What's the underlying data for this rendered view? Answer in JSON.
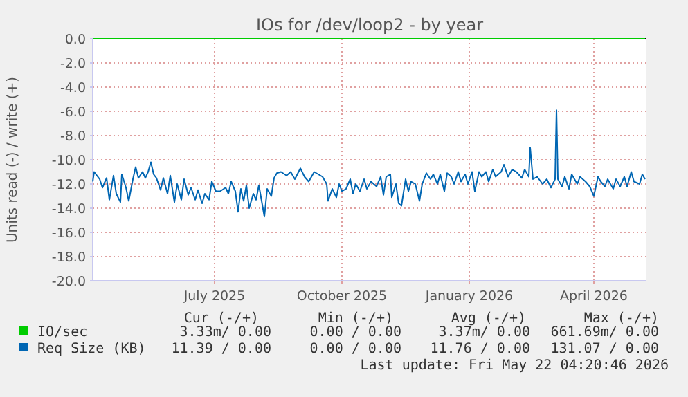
{
  "chart_data": {
    "type": "line",
    "title": "IOs for /dev/loop2 - by year",
    "ylabel": "Units read (-) / write (+)",
    "xlim": [
      "2025-04-04",
      "2026-05-09"
    ],
    "xticks": [
      {
        "value": "2025-07-01",
        "label": "July 2025"
      },
      {
        "value": "2025-10-01",
        "label": "October 2025"
      },
      {
        "value": "2026-01-01",
        "label": "January 2026"
      },
      {
        "value": "2026-04-01",
        "label": "April 2026"
      }
    ],
    "ylim": [
      -20,
      0
    ],
    "yticks": [
      {
        "value": 0,
        "label": "0.0"
      },
      {
        "value": -2,
        "label": "-2.0"
      },
      {
        "value": -4,
        "label": "-4.0"
      },
      {
        "value": -6,
        "label": "-6.0"
      },
      {
        "value": -8,
        "label": "-8.0"
      },
      {
        "value": -10,
        "label": "-10.0"
      },
      {
        "value": -12,
        "label": "-12.0"
      },
      {
        "value": -14,
        "label": "-14.0"
      },
      {
        "value": -16,
        "label": "-16.0"
      },
      {
        "value": -18,
        "label": "-18.0"
      },
      {
        "value": -20,
        "label": "-20.0"
      }
    ],
    "grid": true,
    "legend": "bottom",
    "series": [
      {
        "name": "IO/sec",
        "color": "#00cc00",
        "x": [
          "2025-04-04",
          "2026-05-08"
        ],
        "values": [
          0,
          0
        ]
      },
      {
        "name": "Req Size (KB)",
        "color": "#0066b3",
        "x": [
          "2025-04-04",
          "2025-04-05",
          "2025-04-09",
          "2025-04-11",
          "2025-04-14",
          "2025-04-16",
          "2025-04-19",
          "2025-04-21",
          "2025-04-24",
          "2025-04-25",
          "2025-04-28",
          "2025-04-30",
          "2025-05-03",
          "2025-05-05",
          "2025-05-07",
          "2025-05-10",
          "2025-05-12",
          "2025-05-14",
          "2025-05-16",
          "2025-05-18",
          "2025-05-20",
          "2025-05-23",
          "2025-05-25",
          "2025-05-28",
          "2025-05-30",
          "2025-06-02",
          "2025-06-04",
          "2025-06-07",
          "2025-06-09",
          "2025-06-12",
          "2025-06-14",
          "2025-06-17",
          "2025-06-19",
          "2025-06-22",
          "2025-06-24",
          "2025-06-27",
          "2025-06-29",
          "2025-07-02",
          "2025-07-05",
          "2025-07-09",
          "2025-07-11",
          "2025-07-13",
          "2025-07-16",
          "2025-07-18",
          "2025-07-20",
          "2025-07-22",
          "2025-07-24",
          "2025-07-26",
          "2025-07-29",
          "2025-07-31",
          "2025-08-02",
          "2025-08-04",
          "2025-08-06",
          "2025-08-08",
          "2025-08-11",
          "2025-08-13",
          "2025-08-15",
          "2025-08-18",
          "2025-08-22",
          "2025-08-25",
          "2025-08-28",
          "2025-09-01",
          "2025-09-04",
          "2025-09-07",
          "2025-09-11",
          "2025-09-14",
          "2025-09-17",
          "2025-09-20",
          "2025-09-21",
          "2025-09-24",
          "2025-09-27",
          "2025-09-29",
          "2025-10-01",
          "2025-10-04",
          "2025-10-07",
          "2025-10-09",
          "2025-10-11",
          "2025-10-14",
          "2025-10-17",
          "2025-10-19",
          "2025-10-22",
          "2025-10-26",
          "2025-10-29",
          "2025-10-31",
          "2025-11-02",
          "2025-11-05",
          "2025-11-06",
          "2025-11-09",
          "2025-11-11",
          "2025-11-13",
          "2025-11-16",
          "2025-11-18",
          "2025-11-20",
          "2025-11-23",
          "2025-11-26",
          "2025-11-28",
          "2025-12-01",
          "2025-12-04",
          "2025-12-06",
          "2025-12-09",
          "2025-12-11",
          "2025-12-14",
          "2025-12-16",
          "2025-12-19",
          "2025-12-21",
          "2025-12-24",
          "2025-12-26",
          "2025-12-29",
          "2025-12-31",
          "2026-01-03",
          "2026-01-05",
          "2026-01-08",
          "2026-01-10",
          "2026-01-13",
          "2026-01-15",
          "2026-01-18",
          "2026-01-20",
          "2026-01-24",
          "2026-01-26",
          "2026-01-29",
          "2026-02-01",
          "2026-02-04",
          "2026-02-08",
          "2026-02-10",
          "2026-02-13",
          "2026-02-14",
          "2026-02-16",
          "2026-02-19",
          "2026-02-23",
          "2026-02-26",
          "2026-03-01",
          "2026-03-04",
          "2026-03-05",
          "2026-03-06",
          "2026-03-09",
          "2026-03-11",
          "2026-03-14",
          "2026-03-16",
          "2026-03-20",
          "2026-03-22",
          "2026-03-26",
          "2026-03-29",
          "2026-04-01",
          "2026-04-04",
          "2026-04-06",
          "2026-04-09",
          "2026-04-11",
          "2026-04-15",
          "2026-04-17",
          "2026-04-20",
          "2026-04-23",
          "2026-04-25",
          "2026-04-28",
          "2026-04-30",
          "2026-05-04",
          "2026-05-06",
          "2026-05-08"
        ],
        "values": [
          -11.8,
          -11.0,
          -11.6,
          -12.3,
          -11.5,
          -13.3,
          -11.3,
          -12.8,
          -13.5,
          -11.2,
          -12.3,
          -13.4,
          -11.6,
          -10.6,
          -11.5,
          -11.0,
          -11.5,
          -11.0,
          -10.2,
          -11.2,
          -11.5,
          -12.5,
          -11.5,
          -12.8,
          -11.3,
          -13.5,
          -12.0,
          -13.3,
          -11.6,
          -12.9,
          -12.3,
          -13.3,
          -12.5,
          -13.6,
          -12.8,
          -13.3,
          -11.8,
          -12.6,
          -12.6,
          -12.3,
          -12.8,
          -11.8,
          -12.6,
          -14.3,
          -12.4,
          -13.4,
          -12.1,
          -14.0,
          -12.8,
          -13.3,
          -12.1,
          -13.4,
          -14.7,
          -12.4,
          -13.0,
          -11.5,
          -11.1,
          -11.0,
          -11.3,
          -11.0,
          -11.6,
          -10.7,
          -11.4,
          -11.8,
          -11.0,
          -11.2,
          -11.4,
          -12.0,
          -13.4,
          -12.4,
          -13.1,
          -12.0,
          -12.6,
          -12.4,
          -11.6,
          -12.8,
          -12.0,
          -12.6,
          -11.6,
          -12.4,
          -11.8,
          -12.2,
          -11.4,
          -12.9,
          -11.4,
          -11.2,
          -13.1,
          -12.0,
          -13.6,
          -13.8,
          -11.6,
          -12.6,
          -11.8,
          -12.0,
          -13.4,
          -12.0,
          -11.1,
          -11.6,
          -11.2,
          -12.0,
          -11.2,
          -12.6,
          -11.1,
          -11.4,
          -12.0,
          -11.0,
          -11.8,
          -11.2,
          -12.0,
          -11.0,
          -12.6,
          -11.0,
          -11.4,
          -11.0,
          -11.8,
          -10.8,
          -11.4,
          -11.0,
          -10.4,
          -11.4,
          -10.8,
          -11.0,
          -11.5,
          -10.8,
          -11.4,
          -9.0,
          -11.6,
          -11.4,
          -12.0,
          -11.6,
          -12.3,
          -11.6,
          -5.9,
          -11.6,
          -12.2,
          -11.4,
          -12.4,
          -11.2,
          -12.0,
          -11.4,
          -11.8,
          -12.2,
          -13.0,
          -11.4,
          -11.8,
          -12.2,
          -11.6,
          -12.4,
          -11.6,
          -12.2,
          -11.4,
          -12.2,
          -11.0,
          -11.8,
          -12.0,
          -11.2,
          -11.6
        ]
      }
    ],
    "annotations": [
      "Cur (-/+)",
      "Min (-/+)",
      "Avg (-/+)",
      "Max (-/+)",
      "3.33m/ 0.00",
      "0.00 / 0.00",
      "3.37m/ 0.00",
      "661.69m/ 0.00",
      "11.39 / 0.00",
      "0.00 / 0.00",
      "11.76 / 0.00",
      "131.07 / 0.00",
      "Last update: Fri May 22 04:20:46 2026"
    ]
  }
}
